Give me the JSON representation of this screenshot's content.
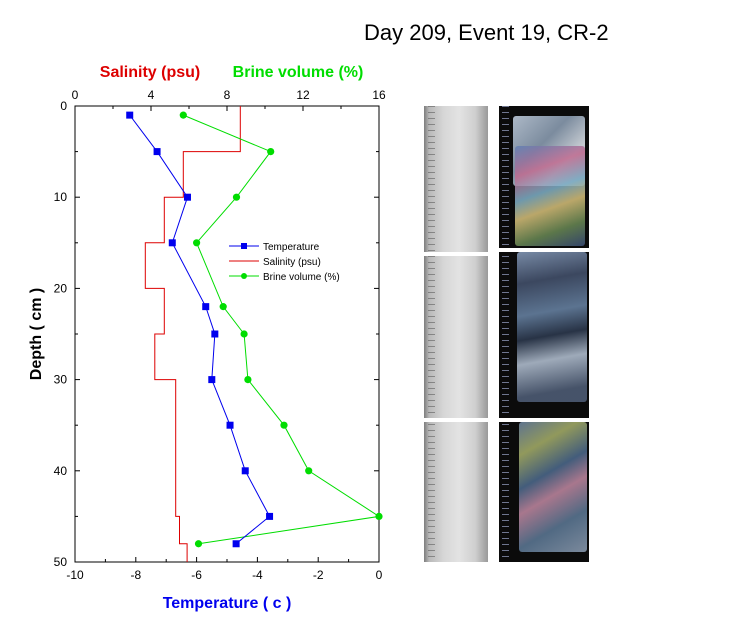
{
  "title": "Day 209, Event 19, CR-2",
  "colors": {
    "temperature": "#0000ee",
    "salinity": "#dd0000",
    "brine": "#00dd00",
    "axis": "#000000"
  },
  "chart_data": {
    "type": "line",
    "orientation": "vertical-profile",
    "y_axis": {
      "label": "Depth ( cm )",
      "range": [
        0,
        50
      ],
      "inverted": true,
      "ticks": [
        0,
        10,
        20,
        30,
        40,
        50
      ]
    },
    "x_axis_bottom": {
      "label": "Temperature ( c )",
      "range": [
        -10,
        0
      ],
      "ticks": [
        -10,
        -8,
        -6,
        -4,
        -2,
        0
      ],
      "color": "#0000ee"
    },
    "x_axis_top": {
      "label_salinity": "Salinity (psu)",
      "label_brine": "Brine volume (%)",
      "range": [
        0,
        16
      ],
      "ticks": [
        0,
        4,
        8,
        12,
        16
      ]
    },
    "legend": {
      "placement": "center-right"
    },
    "series": [
      {
        "name": "Temperature",
        "axis": "bottom",
        "style": "line-square-markers",
        "color": "#0000ee",
        "points": [
          [
            -8.2,
            1
          ],
          [
            -7.3,
            5
          ],
          [
            -6.3,
            10
          ],
          [
            -6.8,
            15
          ],
          [
            -5.7,
            22
          ],
          [
            -5.4,
            25
          ],
          [
            -5.5,
            30
          ],
          [
            -4.9,
            35
          ],
          [
            -4.4,
            40
          ],
          [
            -3.6,
            45
          ],
          [
            -4.7,
            48
          ]
        ]
      },
      {
        "name": "Salinity (psu)",
        "axis": "top",
        "style": "step",
        "color": "#dd0000",
        "segments": [
          [
            8.7,
            0,
            5
          ],
          [
            5.7,
            5,
            10
          ],
          [
            4.7,
            10,
            15
          ],
          [
            3.7,
            15,
            20
          ],
          [
            4.7,
            20,
            25
          ],
          [
            4.2,
            25,
            30
          ],
          [
            5.3,
            30,
            45
          ],
          [
            5.5,
            45,
            48
          ],
          [
            5.9,
            48,
            50
          ]
        ]
      },
      {
        "name": "Brine volume (%)",
        "axis": "top",
        "style": "line-diamond-markers",
        "color": "#00dd00",
        "points": [
          [
            5.7,
            1
          ],
          [
            10.3,
            5
          ],
          [
            8.5,
            10
          ],
          [
            6.4,
            15
          ],
          [
            7.8,
            22
          ],
          [
            8.9,
            25
          ],
          [
            9.1,
            30
          ],
          [
            11.0,
            35
          ],
          [
            12.3,
            40
          ],
          [
            16.0,
            45
          ],
          [
            6.5,
            48
          ]
        ]
      }
    ]
  }
}
